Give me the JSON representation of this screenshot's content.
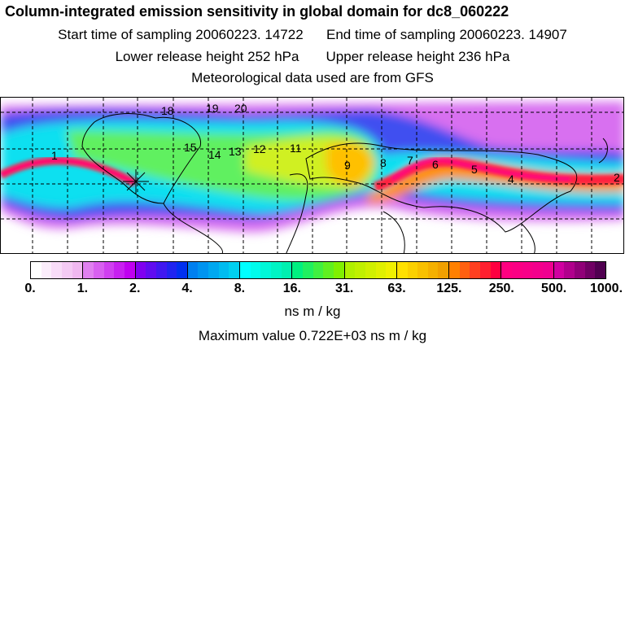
{
  "title": "Column-integrated emission sensitivity in global domain for dc8_060222",
  "start_time": "Start time of sampling 20060223. 14722",
  "end_time": "End time of sampling 20060223. 14907",
  "lower_release": "Lower release height  252 hPa",
  "upper_release": "Upper release height  236 hPa",
  "met_data": "Meteorological data used are from GFS",
  "map": {
    "labels": [
      "1",
      "2",
      "4",
      "5",
      "6",
      "7",
      "8",
      "9",
      "11",
      "12",
      "13",
      "14",
      "15",
      "18",
      "19",
      "20"
    ]
  },
  "colorbar": {
    "ticks": [
      "0.",
      "1.",
      "2.",
      "4.",
      "8.",
      "16.",
      "31.",
      "63.",
      "125.",
      "250.",
      "500.",
      "1000."
    ],
    "unit": "ns m / kg",
    "groups": [
      [
        "#ffffff",
        "#f0b8f0"
      ],
      [
        "#e080f0",
        "#c000f0"
      ],
      [
        "#8000f0",
        "#0030f0"
      ],
      [
        "#0080f0",
        "#00d0f0"
      ],
      [
        "#00ffff",
        "#00f0b0"
      ],
      [
        "#00f080",
        "#80f000"
      ],
      [
        "#b0f000",
        "#f0f000"
      ],
      [
        "#ffe000",
        "#f0a000"
      ],
      [
        "#ff8000",
        "#ff0040"
      ],
      [
        "#ff0080",
        "#f00090"
      ],
      [
        "#d000a0",
        "#500050"
      ]
    ]
  },
  "max_value": "Maximum value  0.722E+03 ns m / kg"
}
